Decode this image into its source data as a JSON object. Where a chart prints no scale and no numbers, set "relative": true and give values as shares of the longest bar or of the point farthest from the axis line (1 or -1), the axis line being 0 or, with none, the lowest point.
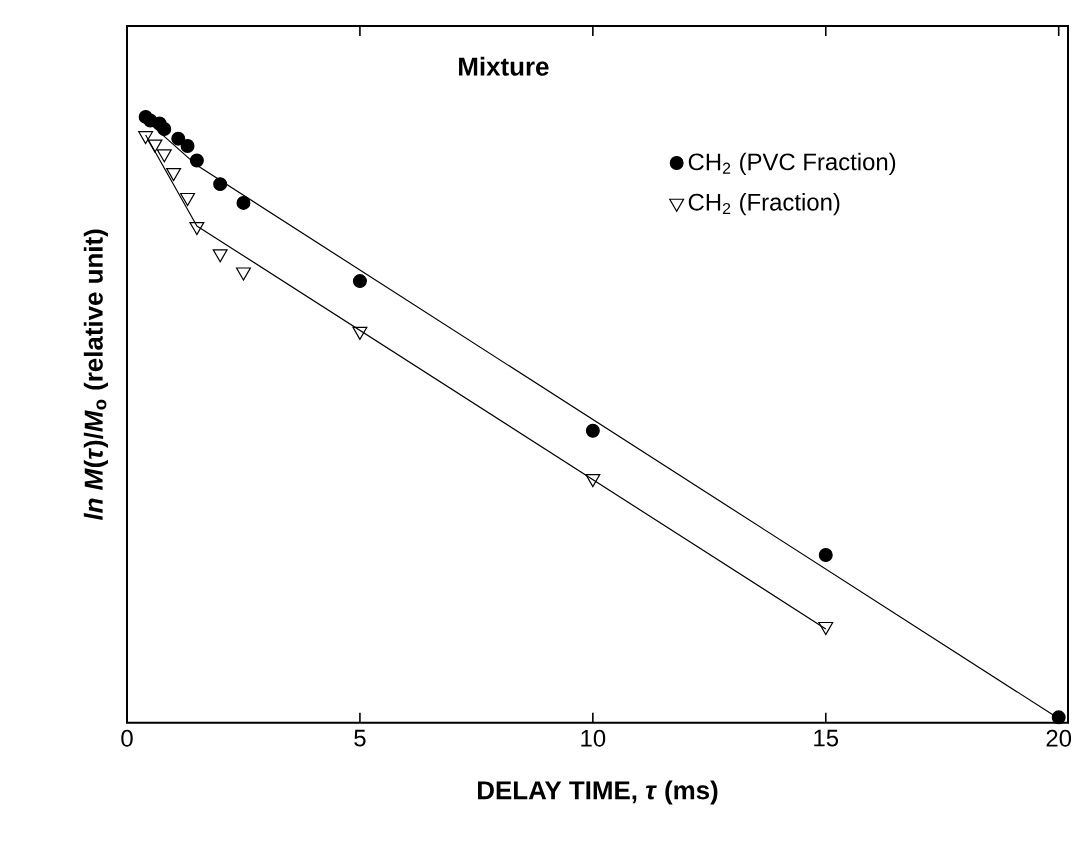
{
  "chart_data": {
    "type": "scatter",
    "title": "Mixture",
    "xlabel": "DELAY TIME, *τ* (ms)",
    "ylabel": "*ln M*(*τ*)/*M*$_{o}$ (relative unit)",
    "relative": true,
    "xlim": [
      0,
      20.2
    ],
    "xticks": [
      0,
      5,
      10,
      15,
      20
    ],
    "legend": "top right",
    "grid": false,
    "series": [
      {
        "name": "CH$_{2}$ (PVC Fraction)",
        "type": "scatter",
        "marker": "circle",
        "color": "#000000",
        "x": [
          0.4,
          0.5,
          0.7,
          0.8,
          1.1,
          1.3,
          1.5,
          2.0,
          2.5,
          5,
          10,
          15,
          20
        ],
        "values": [
          1.0,
          0.994,
          0.989,
          0.98,
          0.964,
          0.952,
          0.928,
          0.889,
          0.858,
          0.729,
          0.482,
          0.277,
          0.009
        ]
      },
      {
        "name": "CH$_{2}$ (Fraction)",
        "type": "scatter",
        "marker": "triangle",
        "color": "#000000",
        "x": [
          0.4,
          0.6,
          0.8,
          1.0,
          1.3,
          1.5,
          2.0,
          2.5,
          5,
          10,
          15
        ],
        "values": [
          0.969,
          0.955,
          0.939,
          0.908,
          0.867,
          0.819,
          0.774,
          0.744,
          0.646,
          0.403,
          0.159
        ]
      },
      {
        "type": "line",
        "marker": "none",
        "color": "#000000",
        "x": [
          0.4,
          1.5,
          20
        ],
        "values": [
          0.995,
          0.92,
          0.007
        ]
      },
      {
        "type": "line",
        "marker": "none",
        "color": "#000000",
        "x": [
          0.4,
          1.5,
          15
        ],
        "values": [
          0.97,
          0.82,
          0.155
        ]
      }
    ]
  }
}
